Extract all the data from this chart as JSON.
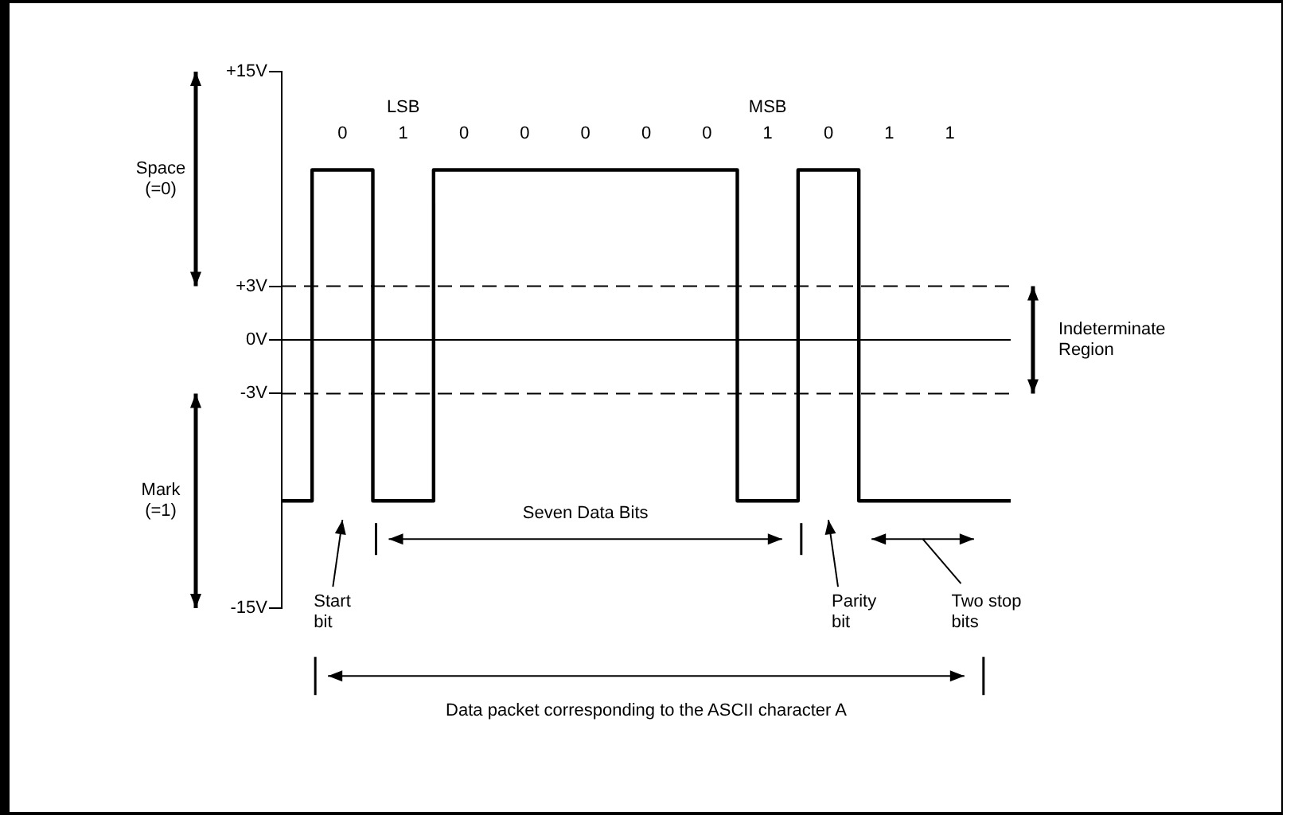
{
  "chart_data": {
    "type": "step",
    "categories": [
      null,
      "0",
      "1",
      "0",
      "0",
      "0",
      "0",
      "0",
      "1",
      "0",
      "1",
      "1",
      null
    ],
    "series": [
      {
        "color": "#000000",
        "values": [
          -9,
          9.5,
          -9,
          9.5,
          9.5,
          9.5,
          9.5,
          9.5,
          -9,
          9.5,
          -9,
          -9,
          -9
        ]
      }
    ],
    "ylim": [
      -15,
      15
    ],
    "yticks": [
      {
        "value": 15,
        "label": "+15V"
      },
      {
        "value": 3,
        "label": "+3V"
      },
      {
        "value": 0,
        "label": "0V"
      },
      {
        "value": -3,
        "label": "-3V"
      },
      {
        "value": -15,
        "label": "-15V"
      }
    ],
    "ref_lines": [
      {
        "axis": "y",
        "value": 3,
        "line_style": "dashed",
        "color": "#000000"
      },
      {
        "axis": "y",
        "value": 0,
        "line_style": "solid",
        "color": "#000000"
      },
      {
        "axis": "y",
        "value": -3,
        "line_style": "dashed",
        "color": "#000000"
      }
    ],
    "annotations": [
      "LSB",
      "MSB",
      "Space (=0)",
      "Mark (=1)",
      "Indeterminate Region",
      "Seven Data Bits",
      "Start bit",
      "Parity bit",
      "Two stop bits",
      "Data packet corresponding to the ASCII character A"
    ],
    "grid": false,
    "legend": false,
    "marker": "none",
    "line_style": "solid"
  }
}
